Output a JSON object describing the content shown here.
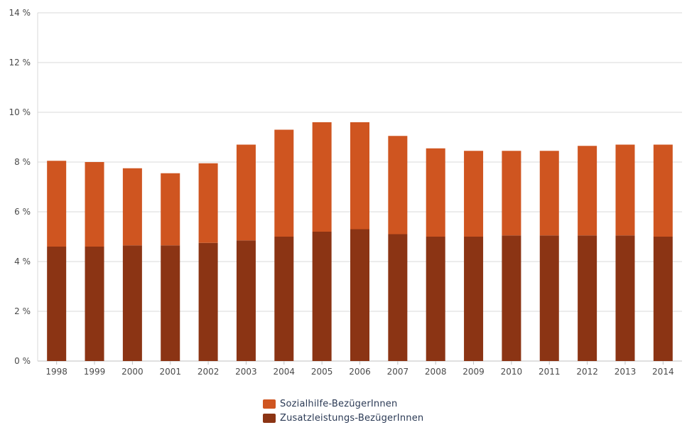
{
  "colors": {
    "sozialhilfe": "#cf5520",
    "zusatzleistungs": "#8b3414",
    "grid": "#d8d8d8",
    "axis": "#c0c0c0"
  },
  "chart_data": {
    "type": "bar",
    "stacked": true,
    "title": "",
    "xlabel": "",
    "ylabel": "",
    "ylim": [
      0,
      14
    ],
    "yticks": [
      0,
      2,
      4,
      6,
      8,
      10,
      12,
      14
    ],
    "ytick_suffix": " %",
    "grid": true,
    "legend_position": "bottom",
    "categories": [
      "1998",
      "1999",
      "2000",
      "2001",
      "2002",
      "2003",
      "2004",
      "2005",
      "2006",
      "2007",
      "2008",
      "2009",
      "2010",
      "2011",
      "2012",
      "2013",
      "2014"
    ],
    "series": [
      {
        "name": "Zusatzleistungs-BezügerInnen",
        "color_key": "zusatzleistungs",
        "values": [
          4.6,
          4.6,
          4.65,
          4.65,
          4.75,
          4.85,
          5.0,
          5.2,
          5.3,
          5.1,
          5.0,
          5.0,
          5.05,
          5.05,
          5.05,
          5.05,
          5.0
        ]
      },
      {
        "name": "Sozialhilfe-BezügerInnen",
        "color_key": "sozialhilfe",
        "values": [
          3.45,
          3.4,
          3.1,
          2.9,
          3.2,
          3.85,
          4.3,
          4.4,
          4.3,
          3.95,
          3.55,
          3.45,
          3.4,
          3.4,
          3.6,
          3.65,
          3.7
        ]
      }
    ]
  },
  "legend": {
    "items": [
      {
        "label": "Sozialhilfe-BezügerInnen",
        "color_key": "sozialhilfe"
      },
      {
        "label": "Zusatzleistungs-BezügerInnen",
        "color_key": "zusatzleistungs"
      }
    ]
  }
}
